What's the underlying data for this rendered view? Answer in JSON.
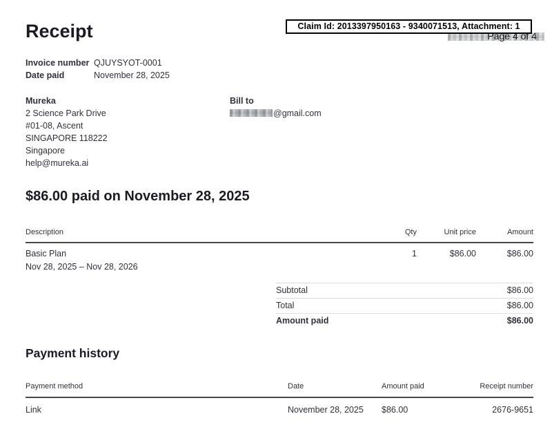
{
  "page": {
    "claim_banner": "Claim Id: 2013397950163 - 9340071513, Attachment: 1",
    "page_indicator": "Page 4 of 4",
    "title": "Receipt"
  },
  "invoice_meta": {
    "rows": [
      {
        "label": "Invoice number",
        "value": "QJUYSYOT-0001"
      },
      {
        "label": "Date paid",
        "value": "November 28, 2025"
      }
    ]
  },
  "merchant": {
    "name": "Mureka",
    "address_lines": [
      "2 Science Park Drive",
      "#01-08, Ascent",
      "SINGAPORE 118222",
      "Singapore",
      "help@mureka.ai"
    ]
  },
  "bill_to": {
    "label": "Bill to",
    "email_visible_part": "@gmail.com"
  },
  "headline": "$86.00 paid on November 28, 2025",
  "line_items": {
    "headers": {
      "description": "Description",
      "qty": "Qty",
      "unit_price": "Unit price",
      "amount": "Amount"
    },
    "rows": [
      {
        "description": "Basic Plan",
        "period": "Nov 28, 2025 – Nov 28, 2026",
        "qty": "1",
        "unit_price": "$86.00",
        "amount": "$86.00"
      }
    ]
  },
  "totals": {
    "rows": [
      {
        "label": "Subtotal",
        "value": "$86.00"
      },
      {
        "label": "Total",
        "value": "$86.00"
      },
      {
        "label": "Amount paid",
        "value": "$86.00"
      }
    ]
  },
  "payment_history": {
    "title": "Payment history",
    "headers": {
      "method": "Payment method",
      "date": "Date",
      "amount_paid": "Amount paid",
      "receipt_number": "Receipt number"
    },
    "rows": [
      {
        "method": "Link",
        "date": "November 28, 2025",
        "amount_paid": "$86.00",
        "receipt_number": "2676-9651"
      }
    ]
  }
}
